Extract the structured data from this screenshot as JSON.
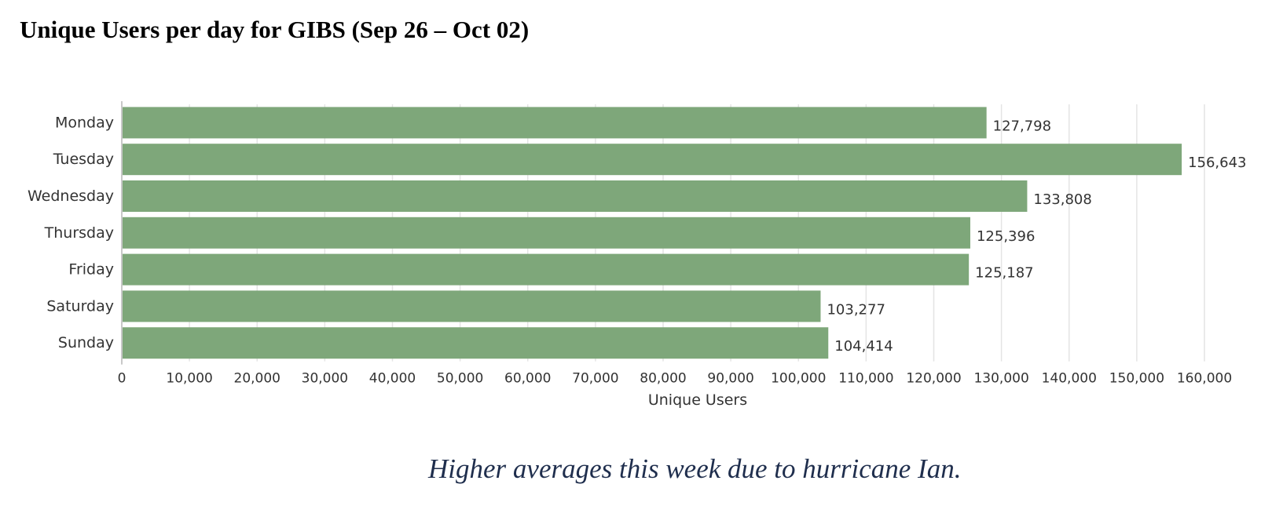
{
  "title": "Unique Users per day for GIBS (Sep 26 – Oct 02)",
  "note": "Higher averages this week due to hurricane Ian.",
  "chart_data": {
    "type": "bar",
    "orientation": "horizontal",
    "categories": [
      "Monday",
      "Tuesday",
      "Wednesday",
      "Thursday",
      "Friday",
      "Saturday",
      "Sunday"
    ],
    "values": [
      127798,
      156643,
      133808,
      125396,
      125187,
      103277,
      104414
    ],
    "data_labels": [
      "127,798",
      "156,643",
      "133,808",
      "125,396",
      "125,187",
      "103,277",
      "104,414"
    ],
    "xlabel": "Unique Users",
    "ylabel": "",
    "xlim": [
      0,
      160000
    ],
    "xticks": [
      0,
      10000,
      20000,
      30000,
      40000,
      50000,
      60000,
      70000,
      80000,
      90000,
      100000,
      110000,
      120000,
      130000,
      140000,
      150000,
      160000
    ],
    "xtick_labels": [
      "0",
      "10,000",
      "20,000",
      "30,000",
      "40,000",
      "50,000",
      "60,000",
      "70,000",
      "80,000",
      "90,000",
      "100,000",
      "110,000",
      "120,000",
      "130,000",
      "140,000",
      "150,000",
      "160,000"
    ],
    "grid": true,
    "legend": false
  },
  "colors": {
    "bar": "#7ea77a",
    "grid": "#e4e4e4",
    "axis": "#c8c8c8",
    "text": "#333333",
    "note": "#1f2e4d"
  }
}
